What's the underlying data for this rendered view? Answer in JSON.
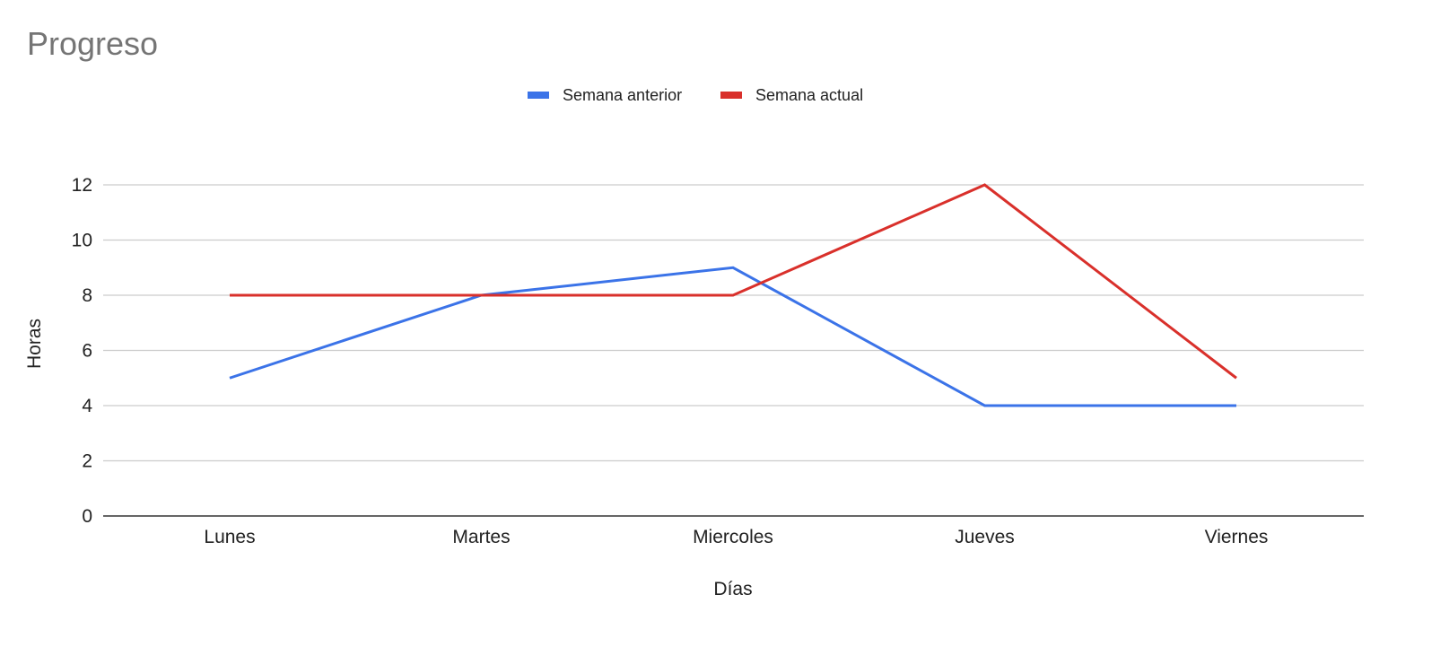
{
  "chart_data": {
    "type": "line",
    "title": "Progreso",
    "xlabel": "Días",
    "ylabel": "Horas",
    "categories": [
      "Lunes",
      "Martes",
      "Miercoles",
      "Jueves",
      "Viernes"
    ],
    "series": [
      {
        "name": "Semana anterior",
        "color": "#3b73e8",
        "values": [
          5,
          8,
          9,
          4,
          4
        ]
      },
      {
        "name": "Semana actual",
        "color": "#d9302b",
        "values": [
          8,
          8,
          8,
          12,
          5
        ]
      }
    ],
    "ylim": [
      0,
      12
    ],
    "yticks": [
      0,
      2,
      4,
      6,
      8,
      10,
      12
    ],
    "grid": true,
    "legend_position": "top"
  }
}
